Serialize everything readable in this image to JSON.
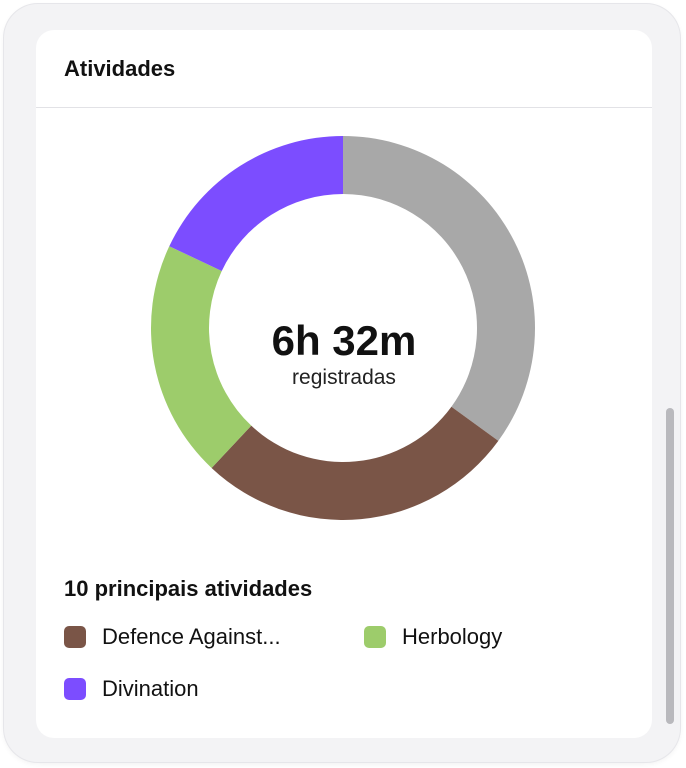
{
  "card": {
    "title": "Atividades"
  },
  "summary": {
    "total": "6h 32m",
    "caption": "registradas"
  },
  "legend": {
    "title": "10 principais atividades",
    "items": [
      {
        "label": "Defence Against...",
        "color": "#7a5547"
      },
      {
        "label": "Herbology",
        "color": "#9dcc6b"
      },
      {
        "label": "Divination",
        "color": "#7c4dff"
      }
    ]
  },
  "chart_data": {
    "type": "pie",
    "style": "donut",
    "slices": [
      {
        "value": 0.35,
        "color": "#a8a8a8"
      },
      {
        "value": 0.27,
        "color": "#7a5547"
      },
      {
        "value": 0.2,
        "color": "#9dcc6b"
      },
      {
        "value": 0.18,
        "color": "#7c4dff"
      }
    ],
    "start": "top",
    "direction": "clockwise"
  }
}
